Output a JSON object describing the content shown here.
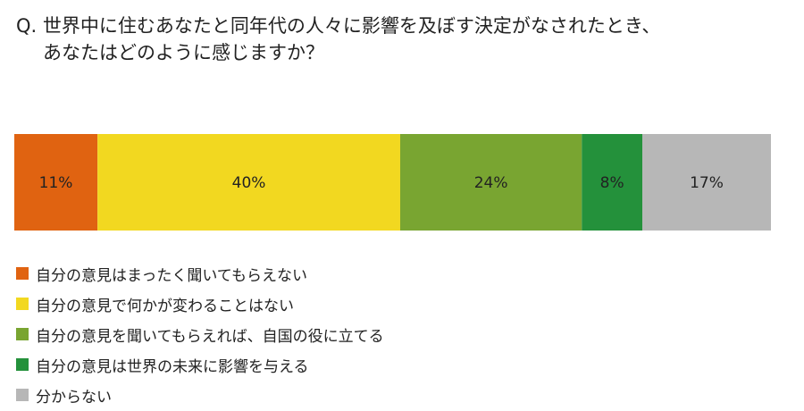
{
  "question": {
    "line1": "Q. 世界中に住むあなたと同年代の人々に影響を及ぼす決定がなされたとき、",
    "line2": "あなたはどのように感じますか？"
  },
  "chart_data": {
    "type": "bar",
    "orientation": "horizontal",
    "stacked": true,
    "normalized_percent": true,
    "title": "",
    "xlabel": "",
    "ylabel": "",
    "xlim": [
      0,
      100
    ],
    "grid": false,
    "legend_position": "bottom-left",
    "series": [
      {
        "name": "自分の意見はまったく聞いてもらえない",
        "value": 11,
        "label": "11%",
        "color": "#e06311"
      },
      {
        "name": "自分の意見で何かが変わることはない",
        "value": 40,
        "label": "40%",
        "color": "#f2d820"
      },
      {
        "name": "自分の意見を聞いてもらえれば、自国の役に立てる",
        "value": 24,
        "label": "24%",
        "color": "#79a531"
      },
      {
        "name": "自分の意見は世界の未来に影響を与える",
        "value": 8,
        "label": "8%",
        "color": "#24913b"
      },
      {
        "name": "分からない",
        "value": 17,
        "label": "17%",
        "color": "#b7b7b7"
      }
    ]
  }
}
